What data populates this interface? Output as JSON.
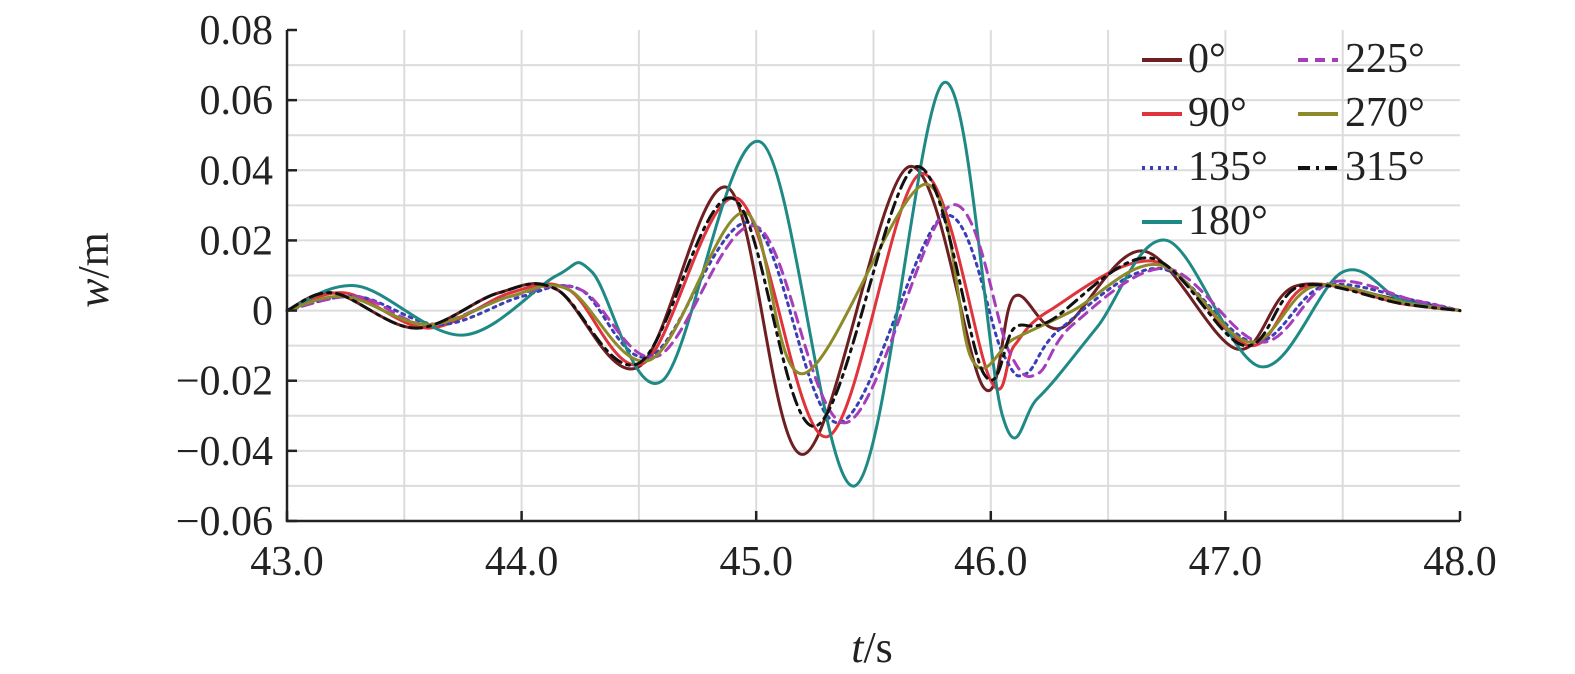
{
  "chart_data": {
    "type": "line",
    "title": "",
    "xlabel_var": "t",
    "xlabel_unit": "/s",
    "ylabel_var": "w",
    "ylabel_unit": "/m",
    "xlim": [
      43.0,
      48.0
    ],
    "ylim": [
      -0.06,
      0.08
    ],
    "x_ticks": [
      43.0,
      44.0,
      45.0,
      46.0,
      47.0,
      48.0
    ],
    "x_tick_labels": [
      "43.0",
      "44.0",
      "45.0",
      "46.0",
      "47.0",
      "48.0"
    ],
    "y_ticks": [
      -0.06,
      -0.04,
      -0.02,
      0,
      0.02,
      0.04,
      0.06,
      0.08
    ],
    "y_tick_labels": [
      "−0.06",
      "−0.04",
      "−0.02",
      "0",
      "0.02",
      "0.04",
      "0.06",
      "0.08"
    ],
    "grid": true,
    "legend_position": "top-right",
    "series": [
      {
        "name": "0°",
        "color": "#6e1f22",
        "dash": "solid",
        "x": [
          43.0,
          43.2,
          43.55,
          43.9,
          44.15,
          44.5,
          44.88,
          45.2,
          45.65,
          45.97,
          46.1,
          46.3,
          46.65,
          47.05,
          47.3,
          47.75,
          48.0
        ],
        "y": [
          0.0,
          0.005,
          -0.005,
          0.005,
          0.006,
          -0.016,
          0.035,
          -0.041,
          0.041,
          -0.022,
          0.004,
          -0.005,
          0.017,
          -0.011,
          0.007,
          0.003,
          0.0
        ]
      },
      {
        "name": "90°",
        "color": "#e0343c",
        "dash": "solid",
        "x": [
          43.0,
          43.25,
          43.6,
          43.95,
          44.2,
          44.52,
          44.92,
          45.3,
          45.7,
          46.0,
          46.1,
          46.25,
          46.7,
          47.1,
          47.35,
          47.75,
          48.0
        ],
        "y": [
          0.0,
          0.005,
          -0.005,
          0.005,
          0.006,
          -0.015,
          0.032,
          -0.036,
          0.039,
          -0.02,
          -0.01,
          0.0,
          0.014,
          -0.01,
          0.007,
          0.002,
          0.0
        ]
      },
      {
        "name": "135°",
        "color": "#3b3fb5",
        "dash": "dotted",
        "x": [
          43.0,
          43.3,
          43.65,
          44.0,
          44.25,
          44.55,
          44.98,
          45.35,
          45.8,
          46.05,
          46.15,
          46.3,
          46.72,
          47.12,
          47.42,
          47.8,
          48.0
        ],
        "y": [
          0.0,
          0.004,
          -0.004,
          0.004,
          0.006,
          -0.013,
          0.025,
          -0.032,
          0.027,
          -0.012,
          -0.018,
          -0.005,
          0.012,
          -0.009,
          0.007,
          0.003,
          0.0
        ]
      },
      {
        "name": "180°",
        "color": "#1f8a85",
        "dash": "solid",
        "x": [
          43.0,
          43.3,
          43.75,
          44.15,
          44.3,
          44.6,
          45.02,
          45.42,
          45.8,
          46.05,
          46.2,
          46.45,
          46.75,
          47.15,
          47.5,
          47.75,
          48.0
        ],
        "y": [
          0.0,
          0.007,
          -0.007,
          0.01,
          0.011,
          -0.02,
          0.048,
          -0.05,
          0.065,
          -0.03,
          -0.025,
          -0.005,
          0.02,
          -0.016,
          0.011,
          0.003,
          0.0
        ]
      },
      {
        "name": "225°",
        "color": "#a63dba",
        "dash": "dashed",
        "x": [
          43.0,
          43.3,
          43.6,
          43.95,
          44.25,
          44.58,
          45.0,
          45.38,
          45.83,
          46.08,
          46.2,
          46.35,
          46.75,
          47.15,
          47.45,
          47.8,
          48.0
        ],
        "y": [
          0.0,
          0.004,
          -0.004,
          0.004,
          0.006,
          -0.013,
          0.024,
          -0.032,
          0.03,
          -0.012,
          -0.018,
          -0.004,
          0.012,
          -0.009,
          0.008,
          0.003,
          0.0
        ]
      },
      {
        "name": "270°",
        "color": "#8c8a2a",
        "dash": "solid",
        "x": [
          43.0,
          43.25,
          43.6,
          43.95,
          44.2,
          44.55,
          44.95,
          45.2,
          45.72,
          45.92,
          46.1,
          46.35,
          46.72,
          47.1,
          47.38,
          47.78,
          48.0
        ],
        "y": [
          0.0,
          0.004,
          -0.004,
          0.004,
          0.006,
          -0.014,
          0.028,
          -0.018,
          0.036,
          -0.014,
          -0.008,
          0.0,
          0.013,
          -0.009,
          0.007,
          0.002,
          0.0
        ]
      },
      {
        "name": "315°",
        "color": "#111111",
        "dash": "dashdot",
        "x": [
          43.0,
          43.2,
          43.55,
          43.9,
          44.15,
          44.5,
          44.9,
          45.25,
          45.68,
          45.97,
          46.1,
          46.25,
          46.68,
          47.08,
          47.32,
          47.75,
          48.0
        ],
        "y": [
          0.0,
          0.005,
          -0.005,
          0.005,
          0.006,
          -0.015,
          0.032,
          -0.033,
          0.041,
          -0.018,
          -0.005,
          -0.003,
          0.015,
          -0.01,
          0.007,
          0.002,
          0.0
        ]
      }
    ]
  }
}
